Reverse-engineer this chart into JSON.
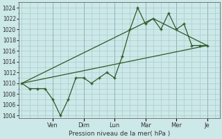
{
  "xlabel": "Pression niveau de la mer( hPa )",
  "bg_color": "#cce8e8",
  "grid_color": "#aacccc",
  "line_color": "#2d5a27",
  "ylim": [
    1003.5,
    1025.0
  ],
  "yticks": [
    1004,
    1006,
    1008,
    1010,
    1012,
    1014,
    1016,
    1018,
    1020,
    1022,
    1024
  ],
  "x_day_labels": [
    "Ven",
    "Dim",
    "Lun",
    "Mar",
    "Mer",
    "Je"
  ],
  "x_day_positions": [
    2.0,
    4.0,
    6.0,
    8.0,
    10.0,
    12.0
  ],
  "xlim": [
    -0.2,
    12.8
  ],
  "series1_x": [
    0,
    0.5,
    1.0,
    1.5,
    2.0,
    2.5,
    3.0,
    3.5,
    4.0,
    4.5,
    5.0,
    5.5,
    6.0,
    6.5,
    7.0,
    7.5,
    8.0,
    8.5,
    9.0,
    9.5,
    10.0,
    10.5,
    11.0,
    11.5,
    12.0
  ],
  "series1_y": [
    1010,
    1009,
    1009,
    1009,
    1007,
    1004,
    1007,
    1011,
    1011,
    1010,
    1011,
    1012,
    1011,
    1015,
    1020,
    1024,
    1021,
    1022,
    1020,
    1023,
    1020,
    1021,
    1017,
    1017,
    1017
  ],
  "series2_x": [
    0,
    12.0
  ],
  "series2_y": [
    1010,
    1017
  ],
  "series3_x": [
    0,
    8.5,
    12.0
  ],
  "series3_y": [
    1010,
    1022,
    1017
  ],
  "figsize": [
    3.2,
    2.0
  ],
  "dpi": 100
}
